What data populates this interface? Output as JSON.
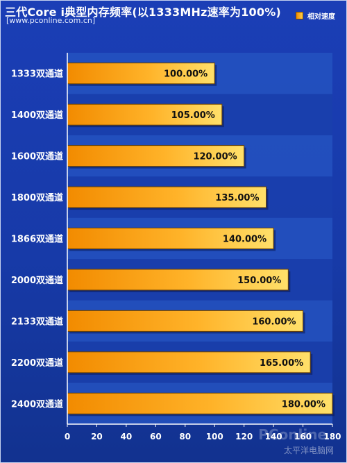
{
  "title": "三代Core i典型内存频率(以1333MHz速率为100%)",
  "subtitle": "[www.pconline.com.cn]",
  "legend": {
    "label": "相对速度"
  },
  "watermark": {
    "text_main": "PConline",
    "text_sub": "太平洋电脑网"
  },
  "colors": {
    "background_top": "#1b3eb6",
    "bar_start": "#f28b00",
    "bar_end": "#ffd24a",
    "bar_border": "#6d4300",
    "axis": "#ffffff",
    "label_text": "#ffffff",
    "value_text": "#111111",
    "stripe": "#2b57c2"
  },
  "chart_data": {
    "type": "bar",
    "orientation": "horizontal",
    "categories": [
      "1333双通道",
      "1400双通道",
      "1600双通道",
      "1800双通道",
      "1866双通道",
      "2000双通道",
      "2133双通道",
      "2200双通道",
      "2400双通道"
    ],
    "series": [
      {
        "name": "相对速度",
        "values": [
          100,
          105,
          120,
          135,
          140,
          150,
          160,
          165,
          180
        ]
      }
    ],
    "data_labels": [
      "100.00%",
      "105.00%",
      "120.00%",
      "135.00%",
      "140.00%",
      "150.00%",
      "160.00%",
      "165.00%",
      "180.00%"
    ],
    "xlim": [
      0,
      180
    ],
    "xticks": [
      0,
      20,
      40,
      60,
      80,
      100,
      120,
      140,
      160,
      180
    ],
    "grid": "alternating horizontal bands",
    "legend_position": "top-right"
  }
}
